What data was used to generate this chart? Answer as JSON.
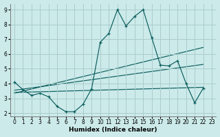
{
  "background_color": "#cceaea",
  "grid_color": "#aacccc",
  "line_color": "#0a5c5c",
  "x_label": "Humidex (Indice chaleur)",
  "xlim": [
    -0.5,
    23.5
  ],
  "ylim": [
    1.8,
    9.4
  ],
  "yticks": [
    2,
    3,
    4,
    5,
    6,
    7,
    8,
    9
  ],
  "xticks": [
    0,
    1,
    2,
    3,
    4,
    5,
    6,
    7,
    8,
    9,
    10,
    11,
    12,
    13,
    14,
    15,
    16,
    17,
    18,
    19,
    20,
    21,
    22,
    23
  ],
  "series_main": {
    "x": [
      0,
      1,
      2,
      3,
      4,
      5,
      6,
      7,
      8,
      9,
      10,
      11,
      12,
      13,
      14,
      15,
      16,
      17,
      18,
      19,
      20,
      21,
      22
    ],
    "y": [
      4.1,
      3.6,
      3.2,
      3.35,
      3.1,
      2.45,
      2.1,
      2.1,
      2.6,
      3.65,
      6.8,
      7.4,
      9.0,
      7.9,
      8.55,
      9.0,
      7.1,
      5.25,
      5.2,
      5.55,
      4.0,
      2.7,
      3.7
    ]
  },
  "trend_lines": [
    {
      "x": [
        0,
        22
      ],
      "y": [
        3.55,
        5.3
      ]
    },
    {
      "x": [
        0,
        22
      ],
      "y": [
        3.4,
        3.75
      ]
    },
    {
      "x": [
        0,
        22
      ],
      "y": [
        3.35,
        6.45
      ]
    }
  ]
}
